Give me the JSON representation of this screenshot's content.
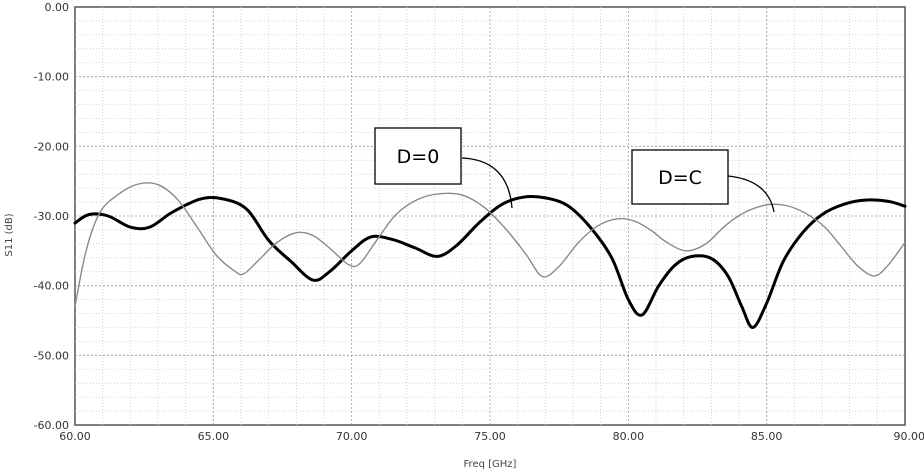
{
  "chart_data": {
    "type": "line",
    "title": "",
    "xlabel": "Freq [GHz]",
    "ylabel": "S11 (dB)",
    "xlim": [
      60,
      90
    ],
    "ylim": [
      -60,
      0
    ],
    "x_ticks": [
      "60.00",
      "65.00",
      "70.00",
      "75.00",
      "80.00",
      "85.00",
      "90.00"
    ],
    "y_ticks": [
      "0.00",
      "-10.00",
      "-20.00",
      "-30.00",
      "-40.00",
      "-50.00",
      "-60.00"
    ],
    "grid": true,
    "series": [
      {
        "name": "D=0",
        "color": "#000000",
        "style": "thick",
        "x": [
          60,
          60.5,
          61.2,
          62,
          62.7,
          63.5,
          64.5,
          65.3,
          66.2,
          67.0,
          67.8,
          68.6,
          69.2,
          70.0,
          70.7,
          71.5,
          72.3,
          73.1,
          73.8,
          74.6,
          75.4,
          76.2,
          77.0,
          77.8,
          78.6,
          79.4,
          80.0,
          80.5,
          81.1,
          81.7,
          82.3,
          83.0,
          83.6,
          84.1,
          84.5,
          85.0,
          85.6,
          86.3,
          87.0,
          87.8,
          88.6,
          89.4,
          90.0
        ],
        "y": [
          -31,
          -29.8,
          -30,
          -31.6,
          -31.6,
          -29.5,
          -27.6,
          -27.5,
          -29.0,
          -33.5,
          -36.5,
          -39.2,
          -38.0,
          -35.0,
          -33.0,
          -33.4,
          -34.6,
          -35.8,
          -34.2,
          -31.0,
          -28.4,
          -27.3,
          -27.4,
          -28.5,
          -31.5,
          -36.0,
          -42.0,
          -44.2,
          -40.0,
          -37.0,
          -35.8,
          -36.1,
          -38.6,
          -43.0,
          -46.0,
          -42.5,
          -36.5,
          -32.4,
          -29.8,
          -28.3,
          -27.7,
          -27.9,
          -28.6
        ]
      },
      {
        "name": "D=C",
        "color": "#8a8a8a",
        "style": "thin",
        "x": [
          60,
          60.4,
          60.9,
          61.6,
          62.3,
          63.0,
          63.7,
          64.4,
          65.1,
          65.8,
          66.1,
          66.6,
          67.3,
          68.0,
          68.6,
          69.2,
          69.9,
          70.3,
          70.9,
          71.6,
          72.4,
          73.2,
          74.0,
          74.8,
          75.6,
          76.3,
          76.9,
          77.5,
          78.2,
          78.9,
          79.6,
          80.2,
          80.8,
          81.4,
          82.1,
          82.8,
          83.5,
          84.2,
          85.0,
          85.7,
          86.4,
          87.1,
          87.7,
          88.3,
          88.9,
          89.4,
          90.0
        ],
        "y": [
          -43,
          -35.0,
          -29.5,
          -26.8,
          -25.4,
          -25.5,
          -27.6,
          -31.5,
          -35.6,
          -38.0,
          -38.3,
          -36.5,
          -33.8,
          -32.4,
          -32.8,
          -34.6,
          -37.0,
          -36.8,
          -33.5,
          -29.8,
          -27.6,
          -26.8,
          -27.0,
          -28.8,
          -32.0,
          -35.5,
          -38.7,
          -37.2,
          -33.8,
          -31.4,
          -30.4,
          -30.7,
          -32.0,
          -33.8,
          -35.0,
          -34.0,
          -31.4,
          -29.5,
          -28.4,
          -28.5,
          -29.6,
          -31.6,
          -34.4,
          -37.2,
          -38.6,
          -37.0,
          -33.8
        ]
      }
    ],
    "annotations": [
      {
        "text": "D=0",
        "points_to": "D=0"
      },
      {
        "text": "D=C",
        "points_to": "D=C"
      }
    ]
  }
}
